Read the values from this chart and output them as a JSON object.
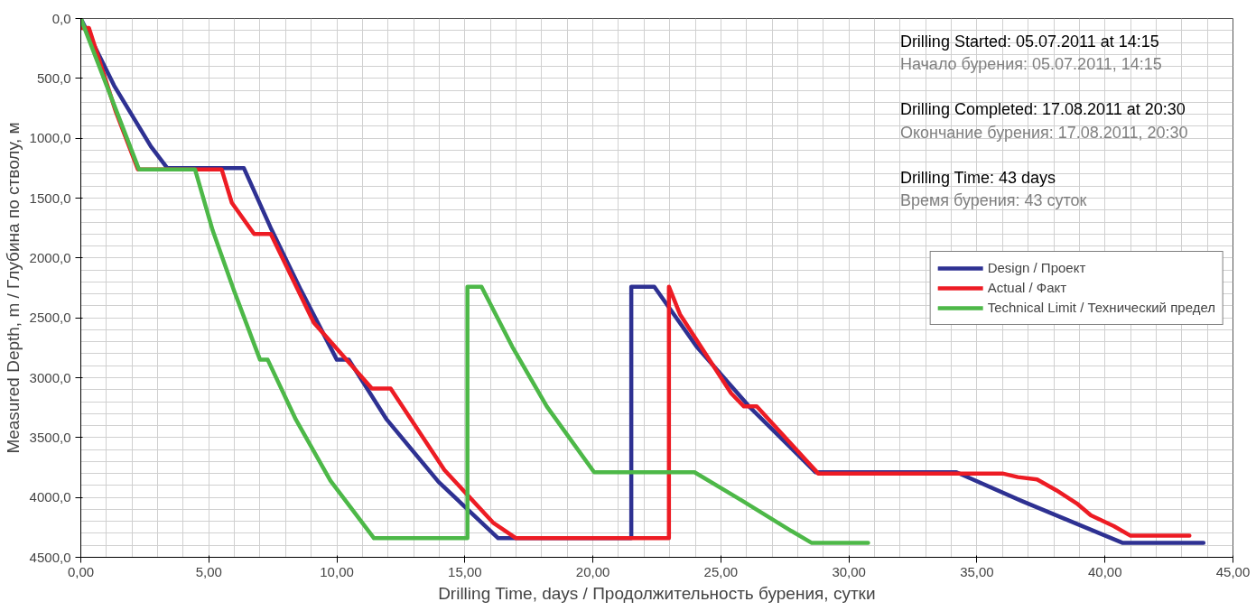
{
  "chart_data": {
    "type": "line",
    "xlabel": "Drilling Time, days / Продолжительность бурения, сутки",
    "ylabel": "Measured Depth, m / Глубина по стволу, м",
    "annotations": [
      "Drilling Started: 05.07.2011 at 14:15",
      "Начало бурения: 05.07.2011, 14:15",
      "Drilling Completed: 17.08.2011 at 20:30",
      "Окончание бурения: 17.08.2011, 20:30",
      "Drilling Time: 43 days",
      "Время бурения: 43 суток"
    ],
    "xlim": [
      0,
      45
    ],
    "ylim": [
      4500,
      0
    ],
    "xticks": [
      {
        "value": 0,
        "label": "0,00"
      },
      {
        "value": 5,
        "label": "5,00"
      },
      {
        "value": 10,
        "label": "10,00"
      },
      {
        "value": 15,
        "label": "15,00"
      },
      {
        "value": 20,
        "label": "20,00"
      },
      {
        "value": 25,
        "label": "25,00"
      },
      {
        "value": 30,
        "label": "30,00"
      },
      {
        "value": 35,
        "label": "35,00"
      },
      {
        "value": 40,
        "label": "40,00"
      },
      {
        "value": 45,
        "label": "45,00"
      }
    ],
    "yticks": [
      {
        "value": 0,
        "label": "0,0"
      },
      {
        "value": 500,
        "label": "500,0"
      },
      {
        "value": 1000,
        "label": "1000,0"
      },
      {
        "value": 1500,
        "label": "1500,0"
      },
      {
        "value": 2000,
        "label": "2000,0"
      },
      {
        "value": 2500,
        "label": "2500,0"
      },
      {
        "value": 3000,
        "label": "3000,0"
      },
      {
        "value": 3500,
        "label": "3500,0"
      },
      {
        "value": 4000,
        "label": "4000,0"
      },
      {
        "value": 4500,
        "label": "4500,0"
      }
    ],
    "grid": true,
    "legend": "right",
    "marker": "none",
    "line_style": "solid",
    "series": [
      {
        "name": "Design / Проект",
        "color": "#2e3192",
        "x": [
          0,
          1.3,
          2.74,
          3.38,
          6.37,
          7.42,
          8.6,
          10.0,
          10.47,
          11.95,
          13.97,
          16.3,
          21.5,
          21.5,
          22.4,
          24.05,
          26.1,
          28.7,
          34.2,
          36.75,
          40.7,
          43.85
        ],
        "values": [
          0,
          560,
          1070,
          1250,
          1250,
          1750,
          2270,
          2850,
          2850,
          3350,
          3870,
          4340,
          4340,
          2240,
          2240,
          2740,
          3240,
          3790,
          3790,
          4030,
          4380,
          4380
        ]
      },
      {
        "name": "Actual / Факт",
        "color": "#ed1c24",
        "x": [
          0,
          0.07,
          0.32,
          1.37,
          2.23,
          5.5,
          5.9,
          6.77,
          7.42,
          9.1,
          11.37,
          12.1,
          14.2,
          16.1,
          17.0,
          22.97,
          22.97,
          23.4,
          25.4,
          25.9,
          26.4,
          28.8,
          36.0,
          36.6,
          37.35,
          38.1,
          38.9,
          39.45,
          40.35,
          41.0,
          43.3
        ],
        "values": [
          0,
          80,
          80,
          780,
          1260,
          1260,
          1540,
          1800,
          1800,
          2540,
          3090,
          3090,
          3770,
          4210,
          4340,
          4340,
          2240,
          2470,
          3130,
          3240,
          3240,
          3800,
          3800,
          3830,
          3850,
          3940,
          4050,
          4150,
          4240,
          4320,
          4320
        ]
      },
      {
        "name": "Technical Limit / Технический предел",
        "color": "#4db848",
        "x": [
          0,
          2.27,
          4.46,
          5.15,
          5.98,
          7.0,
          7.3,
          8.4,
          9.75,
          11.45,
          15.1,
          15.1,
          15.65,
          16.85,
          18.2,
          20.05,
          23.97,
          25.85,
          27.75,
          28.55,
          30.75
        ],
        "values": [
          0,
          1260,
          1260,
          1770,
          2270,
          2850,
          2850,
          3350,
          3860,
          4340,
          4340,
          2240,
          2240,
          2740,
          3240,
          3790,
          3790,
          4030,
          4280,
          4380,
          4380
        ]
      }
    ]
  }
}
